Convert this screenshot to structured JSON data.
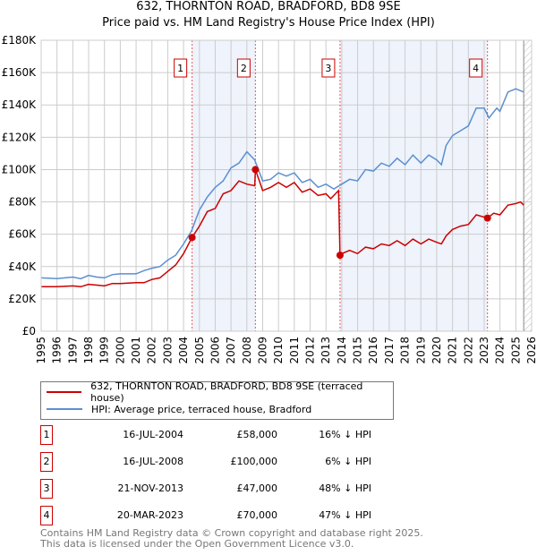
{
  "title": "632, THORNTON ROAD, BRADFORD, BD8 9SE",
  "subtitle": "Price paid vs. HM Land Registry's House Price Index (HPI)",
  "colors": {
    "property": "#cc0000",
    "hpi": "#5b8fd0",
    "shade": "#eef3fc"
  },
  "legend": [
    {
      "label": "632, THORNTON ROAD, BRADFORD, BD8 9SE (terraced house)",
      "color": "#cc0000"
    },
    {
      "label": "HPI: Average price, terraced house, Bradford",
      "color": "#5b8fd0"
    }
  ],
  "transactions": [
    {
      "num": "1",
      "date": "16-JUL-2004",
      "price": "£58,000",
      "hpi": "16% ↓ HPI"
    },
    {
      "num": "2",
      "date": "16-JUL-2008",
      "price": "£100,000",
      "hpi": "6% ↓ HPI"
    },
    {
      "num": "3",
      "date": "21-NOV-2013",
      "price": "£47,000",
      "hpi": "48% ↓ HPI"
    },
    {
      "num": "4",
      "date": "20-MAR-2023",
      "price": "£70,000",
      "hpi": "47% ↓ HPI"
    }
  ],
  "footer": [
    "Contains HM Land Registry data © Crown copyright and database right 2025.",
    "This data is licensed under the Open Government Licence v3.0."
  ],
  "chart_data": {
    "type": "line",
    "xlim": [
      1995,
      2026
    ],
    "ylim": [
      0,
      180000
    ],
    "yticks": [
      0,
      20000,
      40000,
      60000,
      80000,
      100000,
      120000,
      140000,
      160000,
      180000
    ],
    "ytick_labels": [
      "£0",
      "£20K",
      "£40K",
      "£60K",
      "£80K",
      "£100K",
      "£120K",
      "£140K",
      "£160K",
      "£180K"
    ],
    "xticks": [
      "1995",
      "1996",
      "1997",
      "1998",
      "1999",
      "2000",
      "2001",
      "2002",
      "2003",
      "2004",
      "2005",
      "2006",
      "2007",
      "2008",
      "2009",
      "2010",
      "2011",
      "2012",
      "2013",
      "2014",
      "2015",
      "2016",
      "2017",
      "2018",
      "2019",
      "2020",
      "2021",
      "2022",
      "2023",
      "2024",
      "2025",
      "2026"
    ],
    "shaded_ranges": [
      [
        2004.54,
        2008.54
      ],
      [
        2013.89,
        2023.21
      ]
    ],
    "forecast_from": 2025.5,
    "markers": [
      {
        "label": "1",
        "x": 2004.54,
        "y": 58000
      },
      {
        "label": "2",
        "x": 2008.54,
        "y": 100000
      },
      {
        "label": "3",
        "x": 2013.89,
        "y": 47000
      },
      {
        "label": "4",
        "x": 2023.21,
        "y": 70000
      }
    ],
    "series": [
      {
        "name": "632, THORNTON ROAD, BRADFORD, BD8 9SE (terraced house)",
        "color": "#cc0000",
        "points": [
          [
            1995,
            27500
          ],
          [
            1996,
            27500
          ],
          [
            1997,
            28000
          ],
          [
            1997.5,
            27500
          ],
          [
            1998,
            29000
          ],
          [
            1998.5,
            28500
          ],
          [
            1999,
            28000
          ],
          [
            1999.5,
            29500
          ],
          [
            2000,
            29500
          ],
          [
            2001,
            30000
          ],
          [
            2001.5,
            30000
          ],
          [
            2002,
            32000
          ],
          [
            2002.5,
            33000
          ],
          [
            2003,
            37000
          ],
          [
            2003.5,
            41000
          ],
          [
            2004,
            48000
          ],
          [
            2004.54,
            58000
          ],
          [
            2005,
            65000
          ],
          [
            2005.5,
            74000
          ],
          [
            2006,
            76000
          ],
          [
            2006.5,
            85000
          ],
          [
            2007,
            87000
          ],
          [
            2007.5,
            93000
          ],
          [
            2008,
            91000
          ],
          [
            2008.5,
            90000
          ],
          [
            2008.54,
            100000
          ],
          [
            2009,
            87000
          ],
          [
            2009.5,
            89000
          ],
          [
            2010,
            92000
          ],
          [
            2010.5,
            89000
          ],
          [
            2011,
            92000
          ],
          [
            2011.5,
            86000
          ],
          [
            2012,
            88000
          ],
          [
            2012.5,
            84000
          ],
          [
            2013,
            85000
          ],
          [
            2013.3,
            82000
          ],
          [
            2013.8,
            87000
          ],
          [
            2013.89,
            47000
          ],
          [
            2014,
            48000
          ],
          [
            2014.5,
            50000
          ],
          [
            2015,
            48000
          ],
          [
            2015.5,
            52000
          ],
          [
            2016,
            51000
          ],
          [
            2016.5,
            54000
          ],
          [
            2017,
            53000
          ],
          [
            2017.5,
            56000
          ],
          [
            2018,
            53000
          ],
          [
            2018.5,
            57000
          ],
          [
            2019,
            54000
          ],
          [
            2019.5,
            57000
          ],
          [
            2020,
            55000
          ],
          [
            2020.3,
            54000
          ],
          [
            2020.6,
            59000
          ],
          [
            2021,
            63000
          ],
          [
            2021.5,
            65000
          ],
          [
            2022,
            66000
          ],
          [
            2022.5,
            72000
          ],
          [
            2023.21,
            70000
          ],
          [
            2023.6,
            73000
          ],
          [
            2024,
            72000
          ],
          [
            2024.5,
            78000
          ],
          [
            2025,
            79000
          ],
          [
            2025.3,
            80000
          ],
          [
            2025.5,
            78000
          ]
        ]
      },
      {
        "name": "HPI: Average price, terraced house, Bradford",
        "color": "#5b8fd0",
        "points": [
          [
            1995,
            33000
          ],
          [
            1996,
            32500
          ],
          [
            1997,
            33500
          ],
          [
            1997.5,
            32500
          ],
          [
            1998,
            34500
          ],
          [
            1998.5,
            33500
          ],
          [
            1999,
            33000
          ],
          [
            1999.5,
            35000
          ],
          [
            2000,
            35500
          ],
          [
            2001,
            35500
          ],
          [
            2001.5,
            37500
          ],
          [
            2002,
            39000
          ],
          [
            2002.5,
            40000
          ],
          [
            2003,
            44000
          ],
          [
            2003.5,
            47000
          ],
          [
            2004,
            54000
          ],
          [
            2004.5,
            62000
          ],
          [
            2005,
            75000
          ],
          [
            2005.5,
            83000
          ],
          [
            2006,
            89000
          ],
          [
            2006.5,
            93000
          ],
          [
            2007,
            101000
          ],
          [
            2007.5,
            104000
          ],
          [
            2008,
            111000
          ],
          [
            2008.5,
            106000
          ],
          [
            2009,
            93000
          ],
          [
            2009.5,
            94000
          ],
          [
            2010,
            98000
          ],
          [
            2010.5,
            96000
          ],
          [
            2011,
            98000
          ],
          [
            2011.5,
            92000
          ],
          [
            2012,
            94000
          ],
          [
            2012.5,
            89000
          ],
          [
            2013,
            91000
          ],
          [
            2013.5,
            88000
          ],
          [
            2014,
            91000
          ],
          [
            2014.5,
            94000
          ],
          [
            2015,
            93000
          ],
          [
            2015.5,
            100000
          ],
          [
            2016,
            99000
          ],
          [
            2016.5,
            104000
          ],
          [
            2017,
            102000
          ],
          [
            2017.5,
            107000
          ],
          [
            2018,
            103000
          ],
          [
            2018.5,
            109000
          ],
          [
            2019,
            104000
          ],
          [
            2019.5,
            109000
          ],
          [
            2020,
            106000
          ],
          [
            2020.3,
            103000
          ],
          [
            2020.6,
            115000
          ],
          [
            2021,
            121000
          ],
          [
            2021.5,
            124000
          ],
          [
            2022,
            127000
          ],
          [
            2022.5,
            138000
          ],
          [
            2023,
            138000
          ],
          [
            2023.3,
            132000
          ],
          [
            2023.8,
            138000
          ],
          [
            2024,
            136000
          ],
          [
            2024.5,
            148000
          ],
          [
            2025,
            150000
          ],
          [
            2025.5,
            148000
          ]
        ]
      }
    ]
  }
}
